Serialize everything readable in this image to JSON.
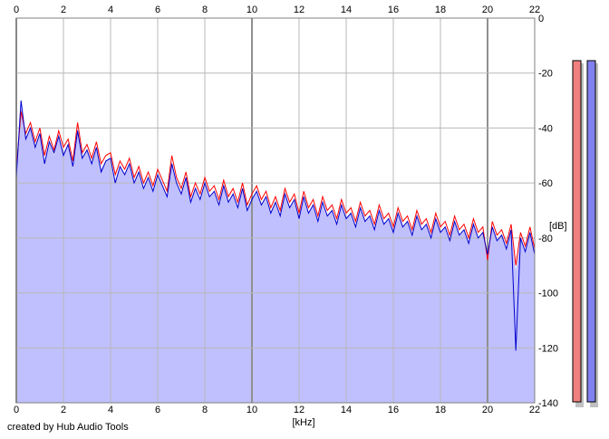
{
  "footer_text": "created by Hub Audio Tools",
  "colors": {
    "background": "#ffffff",
    "area_fill": "#c0c0ff",
    "grid": "#b8b8b8",
    "grid_major": "#909090",
    "left_channel": "#ff0000",
    "right_channel": "#0000cc",
    "meter_left": "#f08080",
    "meter_right": "#8080f0",
    "meter_shadow": "#c0c0c0"
  },
  "chart_data": {
    "type": "line",
    "title": "",
    "xlabel": "[kHz]",
    "ylabel": "[dB]",
    "xlim": [
      0,
      22
    ],
    "ylim": [
      -140,
      0
    ],
    "x_ticks": [
      "0",
      "2",
      "4",
      "6",
      "8",
      "10",
      "12",
      "14",
      "16",
      "18",
      "20",
      "22"
    ],
    "y_ticks": [
      "0",
      "-20",
      "-40",
      "-60",
      "-80",
      "-100",
      "-120",
      "-140"
    ],
    "grid": true,
    "legend": "none",
    "x": [
      0,
      0.2,
      0.4,
      0.6,
      0.8,
      1.0,
      1.2,
      1.4,
      1.6,
      1.8,
      2.0,
      2.2,
      2.4,
      2.6,
      2.8,
      3.0,
      3.2,
      3.4,
      3.6,
      3.8,
      4.0,
      4.2,
      4.4,
      4.6,
      4.8,
      5.0,
      5.2,
      5.4,
      5.6,
      5.8,
      6.0,
      6.2,
      6.4,
      6.6,
      6.8,
      7.0,
      7.2,
      7.4,
      7.6,
      7.8,
      8.0,
      8.2,
      8.4,
      8.6,
      8.8,
      9.0,
      9.2,
      9.4,
      9.6,
      9.8,
      10.0,
      10.2,
      10.4,
      10.6,
      10.8,
      11.0,
      11.2,
      11.4,
      11.6,
      11.8,
      12.0,
      12.2,
      12.4,
      12.6,
      12.8,
      13.0,
      13.2,
      13.4,
      13.6,
      13.8,
      14.0,
      14.2,
      14.4,
      14.6,
      14.8,
      15.0,
      15.2,
      15.4,
      15.6,
      15.8,
      16.0,
      16.2,
      16.4,
      16.6,
      16.8,
      17.0,
      17.2,
      17.4,
      17.6,
      17.8,
      18.0,
      18.2,
      18.4,
      18.6,
      18.8,
      19.0,
      19.2,
      19.4,
      19.6,
      19.8,
      20.0,
      20.2,
      20.4,
      20.6,
      20.8,
      21.0,
      21.2,
      21.4,
      21.6,
      21.8,
      22.0
    ],
    "series": [
      {
        "values": [
          -55,
          -34,
          -42,
          -38,
          -45,
          -40,
          -50,
          -43,
          -48,
          -41,
          -47,
          -44,
          -52,
          -38,
          -49,
          -46,
          -51,
          -45,
          -53,
          -50,
          -49,
          -57,
          -52,
          -55,
          -51,
          -58,
          -54,
          -60,
          -56,
          -61,
          -55,
          -59,
          -63,
          -50,
          -58,
          -62,
          -56,
          -65,
          -60,
          -64,
          -58,
          -63,
          -61,
          -66,
          -59,
          -65,
          -62,
          -67,
          -60,
          -68,
          -64,
          -61,
          -66,
          -63,
          -69,
          -65,
          -70,
          -62,
          -67,
          -64,
          -71,
          -63,
          -69,
          -66,
          -72,
          -65,
          -70,
          -68,
          -73,
          -66,
          -71,
          -69,
          -74,
          -67,
          -72,
          -70,
          -75,
          -68,
          -73,
          -71,
          -76,
          -69,
          -74,
          -72,
          -77,
          -70,
          -75,
          -73,
          -78,
          -71,
          -76,
          -74,
          -79,
          -72,
          -77,
          -75,
          -80,
          -73,
          -78,
          -76,
          -88,
          -74,
          -79,
          -77,
          -82,
          -75,
          -90,
          -78,
          -83,
          -76,
          -84
        ]
      },
      {
        "values": [
          -58,
          -30,
          -44,
          -40,
          -47,
          -42,
          -53,
          -45,
          -49,
          -43,
          -50,
          -46,
          -54,
          -41,
          -51,
          -48,
          -53,
          -47,
          -56,
          -52,
          -51,
          -60,
          -54,
          -57,
          -53,
          -60,
          -56,
          -62,
          -58,
          -63,
          -57,
          -61,
          -65,
          -53,
          -60,
          -64,
          -58,
          -67,
          -62,
          -66,
          -60,
          -65,
          -63,
          -68,
          -61,
          -67,
          -64,
          -69,
          -62,
          -70,
          -66,
          -63,
          -68,
          -65,
          -71,
          -67,
          -72,
          -64,
          -69,
          -66,
          -73,
          -65,
          -71,
          -68,
          -74,
          -67,
          -72,
          -70,
          -75,
          -68,
          -73,
          -71,
          -76,
          -69,
          -74,
          -72,
          -77,
          -70,
          -75,
          -73,
          -78,
          -71,
          -76,
          -74,
          -79,
          -72,
          -77,
          -75,
          -80,
          -73,
          -78,
          -76,
          -81,
          -74,
          -79,
          -77,
          -82,
          -75,
          -80,
          -78,
          -86,
          -76,
          -81,
          -79,
          -84,
          -77,
          -121,
          -80,
          -85,
          -78,
          -86
        ]
      }
    ]
  }
}
